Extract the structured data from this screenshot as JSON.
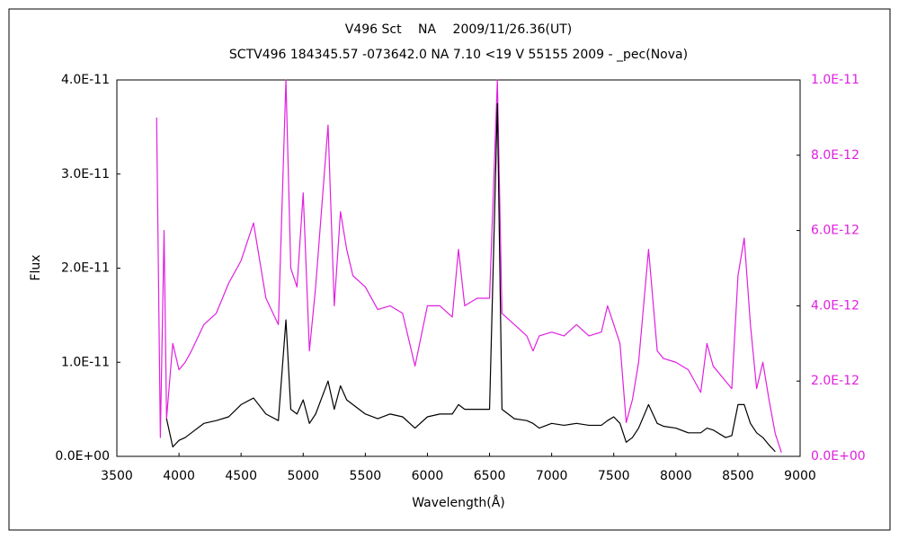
{
  "chart_data": {
    "type": "line",
    "title": "V496 Sct　 NA　 2009/11/26.36(UT)",
    "subtitle": "SCTV496 184345.57 -073642.0 NA 7.10 <19 V 55155 2009 - _pec(Nova)",
    "x_label": "Wavelength(Å)",
    "y_label": "Flux",
    "x": [
      3820,
      3850,
      3880,
      3900,
      3950,
      4000,
      4050,
      4100,
      4200,
      4300,
      4400,
      4500,
      4600,
      4700,
      4800,
      4861,
      4900,
      4950,
      5000,
      5050,
      5100,
      5200,
      5250,
      5300,
      5350,
      5400,
      5500,
      5600,
      5700,
      5800,
      5900,
      6000,
      6100,
      6200,
      6250,
      6300,
      6400,
      6500,
      6563,
      6600,
      6700,
      6800,
      6850,
      6900,
      7000,
      7100,
      7200,
      7300,
      7400,
      7450,
      7500,
      7550,
      7600,
      7650,
      7700,
      7780,
      7850,
      7900,
      8000,
      8100,
      8200,
      8250,
      8300,
      8400,
      8450,
      8500,
      8550,
      8600,
      8650,
      8700,
      8750,
      8800,
      8850
    ],
    "series": [
      {
        "color": "#000000",
        "axis": "y",
        "values": [
          null,
          null,
          null,
          4e-12,
          1e-12,
          1.7e-12,
          2e-12,
          2.5e-12,
          3.5e-12,
          3.8e-12,
          4.2e-12,
          5.5e-12,
          6.2e-12,
          4.5e-12,
          3.8e-12,
          1.45e-11,
          5e-12,
          4.5e-12,
          6e-12,
          3.5e-12,
          4.5e-12,
          8e-12,
          5e-12,
          7.5e-12,
          6e-12,
          5.5e-12,
          4.5e-12,
          4e-12,
          4.5e-12,
          4.2e-12,
          3e-12,
          4.2e-12,
          4.5e-12,
          4.5e-12,
          5.5e-12,
          5e-12,
          5e-12,
          5e-12,
          3.75e-11,
          5e-12,
          4e-12,
          3.8e-12,
          3.5e-12,
          3e-12,
          3.5e-12,
          3.3e-12,
          3.5e-12,
          3.3e-12,
          3.3e-12,
          3.8e-12,
          4.2e-12,
          3.5e-12,
          1.5e-12,
          2e-12,
          3e-12,
          5.5e-12,
          3.5e-12,
          3.2e-12,
          3e-12,
          2.5e-12,
          2.5e-12,
          3e-12,
          2.8e-12,
          2e-12,
          2.2e-12,
          5.5e-12,
          5.5e-12,
          3.5e-12,
          2.5e-12,
          2e-12,
          1.2e-12,
          5e-13,
          null
        ]
      },
      {
        "color": "#e020e0",
        "axis": "y2",
        "values": [
          9e-12,
          5e-13,
          6e-12,
          1e-12,
          3e-12,
          2.3e-12,
          2.5e-12,
          2.8e-12,
          3.5e-12,
          3.8e-12,
          4.6e-12,
          5.2e-12,
          6.2e-12,
          4.2e-12,
          3.5e-12,
          1e-11,
          5e-12,
          4.5e-12,
          7e-12,
          2.8e-12,
          4.5e-12,
          8.8e-12,
          4e-12,
          6.5e-12,
          5.5e-12,
          4.8e-12,
          4.5e-12,
          3.9e-12,
          4e-12,
          3.8e-12,
          2.4e-12,
          4e-12,
          4e-12,
          3.7e-12,
          5.5e-12,
          4e-12,
          4.2e-12,
          4.2e-12,
          1e-11,
          3.8e-12,
          3.5e-12,
          3.2e-12,
          2.8e-12,
          3.2e-12,
          3.3e-12,
          3.2e-12,
          3.5e-12,
          3.2e-12,
          3.3e-12,
          4e-12,
          3.5e-12,
          3e-12,
          9e-13,
          1.5e-12,
          2.5e-12,
          5.5e-12,
          2.8e-12,
          2.6e-12,
          2.5e-12,
          2.3e-12,
          1.7e-12,
          3e-12,
          2.4e-12,
          2e-12,
          1.8e-12,
          4.8e-12,
          5.8e-12,
          3.5e-12,
          1.8e-12,
          2.5e-12,
          1.5e-12,
          6e-13,
          1e-13
        ]
      }
    ],
    "xlim": [
      3500,
      9000
    ],
    "xticks": [
      3500,
      4000,
      4500,
      5000,
      5500,
      6000,
      6500,
      7000,
      7500,
      8000,
      8500,
      9000
    ],
    "ylim": [
      0,
      4e-11
    ],
    "yticks": [
      {
        "value": 0,
        "label": "0.0E+00"
      },
      {
        "value": 1e-11,
        "label": "1.0E-11"
      },
      {
        "value": 2e-11,
        "label": "2.0E-11"
      },
      {
        "value": 3e-11,
        "label": "3.0E-11"
      },
      {
        "value": 4e-11,
        "label": "4.0E-11"
      }
    ],
    "y2lim": [
      0,
      1e-11
    ],
    "y2ticks": [
      {
        "value": 0,
        "label": "0.0E+00"
      },
      {
        "value": 2e-12,
        "label": "2.0E-12"
      },
      {
        "value": 4e-12,
        "label": "4.0E-12"
      },
      {
        "value": 6e-12,
        "label": "6.0E-12"
      },
      {
        "value": 8e-12,
        "label": "8.0E-12"
      },
      {
        "value": 1e-11,
        "label": "1.0E-11"
      }
    ]
  }
}
